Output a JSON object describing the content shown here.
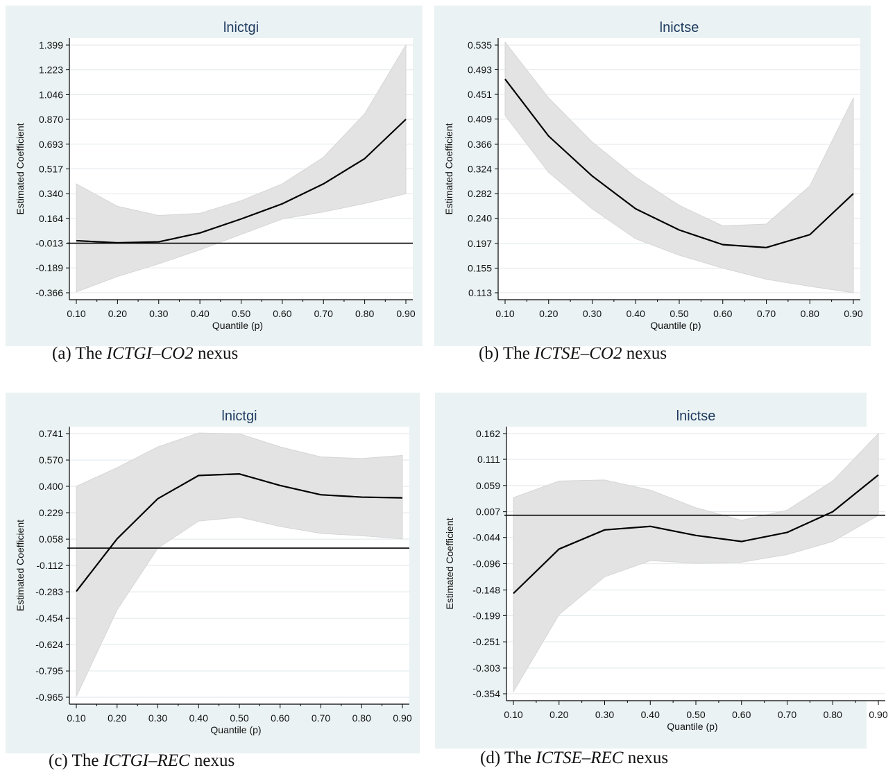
{
  "chart_data": [
    {
      "type": "line",
      "panel_title": "lnictgi",
      "caption": {
        "prefix": "(a) The ",
        "italic": "ICTGI–CO2",
        "suffix": " nexus"
      },
      "xlabel": "Quantile (p)",
      "ylabel": "Estimated Coefficient",
      "x": [
        0.1,
        0.2,
        0.3,
        0.4,
        0.5,
        0.6,
        0.7,
        0.8,
        0.9
      ],
      "x_ticks": [
        "0.10",
        "0.20",
        "0.30",
        "0.40",
        "0.50",
        "0.60",
        "0.70",
        "0.80",
        "0.90"
      ],
      "y_ticks": [
        "-0.366",
        "-0.189",
        "-0.013",
        "0.164",
        "0.340",
        "0.517",
        "0.693",
        "0.870",
        "1.046",
        "1.223",
        "1.399"
      ],
      "ylim": [
        -0.366,
        1.399
      ],
      "series": [
        {
          "values": [
            0.005,
            -0.01,
            -0.003,
            0.06,
            0.16,
            0.268,
            0.41,
            0.59,
            0.87
          ]
        }
      ],
      "ci_upper": [
        0.41,
        0.25,
        0.185,
        0.2,
        0.29,
        0.41,
        0.6,
        0.91,
        1.4
      ],
      "ci_lower": [
        -0.36,
        -0.25,
        -0.16,
        -0.06,
        0.05,
        0.16,
        0.21,
        0.27,
        0.34
      ],
      "ref_line": -0.013,
      "grid": true
    },
    {
      "type": "line",
      "panel_title": "lnictse",
      "caption": {
        "prefix": "(b) The ",
        "italic": "ICTSE–CO2",
        "suffix": " nexus"
      },
      "xlabel": "Quantile (p)",
      "ylabel": "Estimated Coefficient",
      "x": [
        0.1,
        0.2,
        0.3,
        0.4,
        0.5,
        0.6,
        0.7,
        0.8,
        0.9
      ],
      "x_ticks": [
        "0.10",
        "0.20",
        "0.30",
        "0.40",
        "0.50",
        "0.60",
        "0.70",
        "0.80",
        "0.90"
      ],
      "y_ticks": [
        "0.113",
        "0.155",
        "0.197",
        "0.240",
        "0.282",
        "0.324",
        "0.366",
        "0.409",
        "0.451",
        "0.493",
        "0.535"
      ],
      "ylim": [
        0.113,
        0.535
      ],
      "series": [
        {
          "values": [
            0.477,
            0.38,
            0.312,
            0.256,
            0.22,
            0.195,
            0.19,
            0.212,
            0.282
          ]
        }
      ],
      "ci_upper": [
        0.54,
        0.445,
        0.37,
        0.31,
        0.262,
        0.227,
        0.23,
        0.295,
        0.445
      ],
      "ci_lower": [
        0.415,
        0.318,
        0.256,
        0.205,
        0.177,
        0.155,
        0.136,
        0.124,
        0.113
      ],
      "ref_line": null,
      "grid": true
    },
    {
      "type": "line",
      "panel_title": "lnictgi",
      "caption": {
        "prefix": "(c) The ",
        "italic": "ICTGI–REC",
        "suffix": " nexus"
      },
      "xlabel": "Quantile (p)",
      "ylabel": "Estimated Coefficient",
      "x": [
        0.1,
        0.2,
        0.3,
        0.4,
        0.5,
        0.6,
        0.7,
        0.8,
        0.9
      ],
      "x_ticks": [
        "0.10",
        "0.20",
        "0.30",
        "0.40",
        "0.50",
        "0.60",
        "0.70",
        "0.80",
        "0.90"
      ],
      "y_ticks": [
        "-0.965",
        "-0.795",
        "-0.624",
        "-0.454",
        "-0.283",
        "-0.112",
        "0.058",
        "0.229",
        "0.400",
        "0.570",
        "0.741"
      ],
      "ylim": [
        -0.965,
        0.741
      ],
      "series": [
        {
          "values": [
            -0.28,
            0.06,
            0.32,
            0.47,
            0.48,
            0.405,
            0.345,
            0.33,
            0.325
          ]
        }
      ],
      "ci_upper": [
        0.4,
        0.52,
        0.655,
        0.745,
        0.74,
        0.655,
        0.59,
        0.58,
        0.6
      ],
      "ci_lower": [
        -0.96,
        -0.4,
        0.0,
        0.175,
        0.2,
        0.14,
        0.095,
        0.08,
        0.06
      ],
      "ref_line": 0.0,
      "grid": true
    },
    {
      "type": "line",
      "panel_title": "lnictse",
      "caption": {
        "prefix": "(d) The ",
        "italic": "ICTSE–REC",
        "suffix": " nexus"
      },
      "xlabel": "Quantile (p)",
      "ylabel": "Estimated Coefficient",
      "x": [
        0.1,
        0.2,
        0.3,
        0.4,
        0.5,
        0.6,
        0.7,
        0.8,
        0.9
      ],
      "x_ticks": [
        "0.10",
        "0.20",
        "0.30",
        "0.40",
        "0.50",
        "0.60",
        "0.70",
        "0.80",
        "0.90"
      ],
      "y_ticks": [
        "-0.354",
        "-0.303",
        "-0.251",
        "-0.199",
        "-0.148",
        "-0.096",
        "-0.044",
        "0.007",
        "0.059",
        "0.111",
        "0.162"
      ],
      "ylim": [
        -0.354,
        0.162
      ],
      "series": [
        {
          "values": [
            -0.155,
            -0.067,
            -0.029,
            -0.022,
            -0.04,
            -0.052,
            -0.034,
            0.007,
            0.08
          ]
        }
      ],
      "ci_upper": [
        0.035,
        0.068,
        0.07,
        0.05,
        0.015,
        -0.01,
        0.01,
        0.068,
        0.162
      ],
      "ci_lower": [
        -0.35,
        -0.197,
        -0.122,
        -0.09,
        -0.095,
        -0.093,
        -0.078,
        -0.052,
        0.0
      ],
      "ref_line": 0.0,
      "grid": true
    }
  ]
}
